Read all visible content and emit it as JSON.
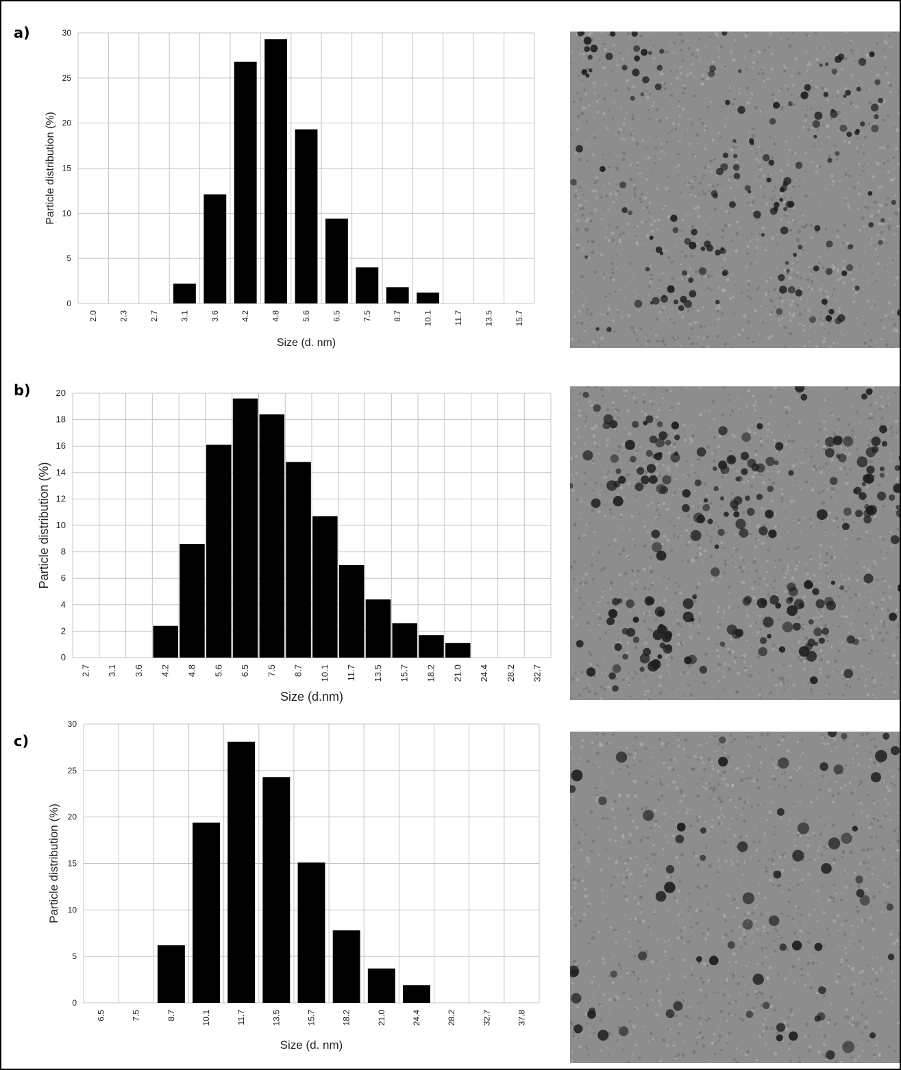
{
  "panels": [
    {
      "label": "a)",
      "micrograph_description": "TEM micrograph",
      "chart_data": {
        "type": "bar",
        "categories": [
          "2.0",
          "2.3",
          "2.7",
          "3.1",
          "3.6",
          "4.2",
          "4.8",
          "5.6",
          "6.5",
          "7.5",
          "8.7",
          "10.1",
          "11.7",
          "13.5",
          "15.7"
        ],
        "values": [
          0,
          0,
          0,
          2.2,
          12.1,
          26.8,
          29.3,
          19.3,
          9.4,
          4.0,
          1.8,
          1.2,
          0,
          0,
          0
        ],
        "xlabel": "Size (d. nm)",
        "ylabel": "Particle distribution (%)",
        "ylim": [
          0,
          30
        ],
        "yticks": [
          0,
          5,
          10,
          15,
          20,
          25,
          30
        ],
        "grid": true,
        "bar_color": "#000000"
      }
    },
    {
      "label": "b)",
      "micrograph_description": "TEM micrograph",
      "chart_data": {
        "type": "bar",
        "categories": [
          "2.7",
          "3.1",
          "3.6",
          "4.2",
          "4.8",
          "5.6",
          "6.5",
          "7.5",
          "8.7",
          "10.1",
          "11.7",
          "13.5",
          "15.7",
          "18.2",
          "21.0",
          "24.4",
          "28.2",
          "32.7"
        ],
        "values": [
          0,
          0,
          0,
          2.4,
          8.6,
          16.1,
          19.6,
          18.4,
          14.8,
          10.7,
          7.0,
          4.4,
          2.6,
          1.7,
          1.1,
          0,
          0,
          0
        ],
        "xlabel": "Size (d.nm)",
        "ylabel": "Particle distribution (%)",
        "ylim": [
          0,
          20
        ],
        "yticks": [
          0,
          2,
          4,
          6,
          8,
          10,
          12,
          14,
          16,
          18,
          20
        ],
        "grid": true,
        "bar_color": "#000000"
      }
    },
    {
      "label": "c)",
      "micrograph_description": "TEM micrograph",
      "chart_data": {
        "type": "bar",
        "categories": [
          "6.5",
          "7.5",
          "8.7",
          "10.1",
          "11.7",
          "13.5",
          "15.7",
          "18.2",
          "21.0",
          "24.4",
          "28.2",
          "32.7",
          "37.8"
        ],
        "values": [
          0,
          0,
          6.2,
          19.4,
          28.1,
          24.3,
          15.1,
          7.8,
          3.7,
          1.9,
          0,
          0,
          0
        ],
        "xlabel": "Size (d. nm)",
        "ylabel": "Particle distribution (%)",
        "ylim": [
          0,
          30
        ],
        "yticks": [
          0,
          5,
          10,
          15,
          20,
          25,
          30
        ],
        "grid": true,
        "bar_color": "#000000"
      }
    }
  ]
}
